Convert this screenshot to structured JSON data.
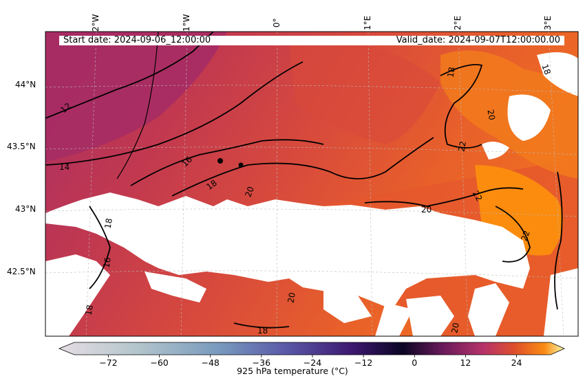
{
  "header": {
    "start_date": "Start date: 2024-09-06_12:00:00",
    "valid_date": "Valid_date: 2024-09-07T12:00:00.00"
  },
  "axes": {
    "lon_labels": [
      "2°W",
      "1°W",
      "0°",
      "1°E",
      "2°E",
      "3°E"
    ],
    "lat_labels": [
      "44°N",
      "43.5°N",
      "43°N",
      "42.5°N"
    ]
  },
  "colorbar": {
    "title": "925 hPa temperature (°C)",
    "ticks": [
      "−72",
      "−60",
      "−48",
      "−36",
      "−24",
      "−12",
      "0",
      "12",
      "24"
    ],
    "range": [
      -80,
      32
    ],
    "extend": "both",
    "colormap": "inferno-style with cool low end",
    "colors": {
      "low": "#e6dde4",
      "cool": "#5d7fb5",
      "purple": "#3d1870",
      "dark": "#0b0524",
      "magenta": "#b6336a",
      "red_orange": "#de4e2d",
      "orange": "#fa8a12",
      "yellow": "#f9f7a6"
    }
  },
  "contour_labels": [
    "12",
    "14",
    "16",
    "18",
    "18",
    "20",
    "20",
    "20",
    "22",
    "22",
    "22",
    "18",
    "20",
    "20",
    "18",
    "18",
    "16",
    "18"
  ],
  "map_colors": {
    "cold_region": "#b02f63",
    "mid_region": "#cf4349",
    "warm_region": "#e5582d",
    "hot_region": "#f27a1c",
    "hottest": "#fb8c0e",
    "missing": "#ffffff"
  }
}
